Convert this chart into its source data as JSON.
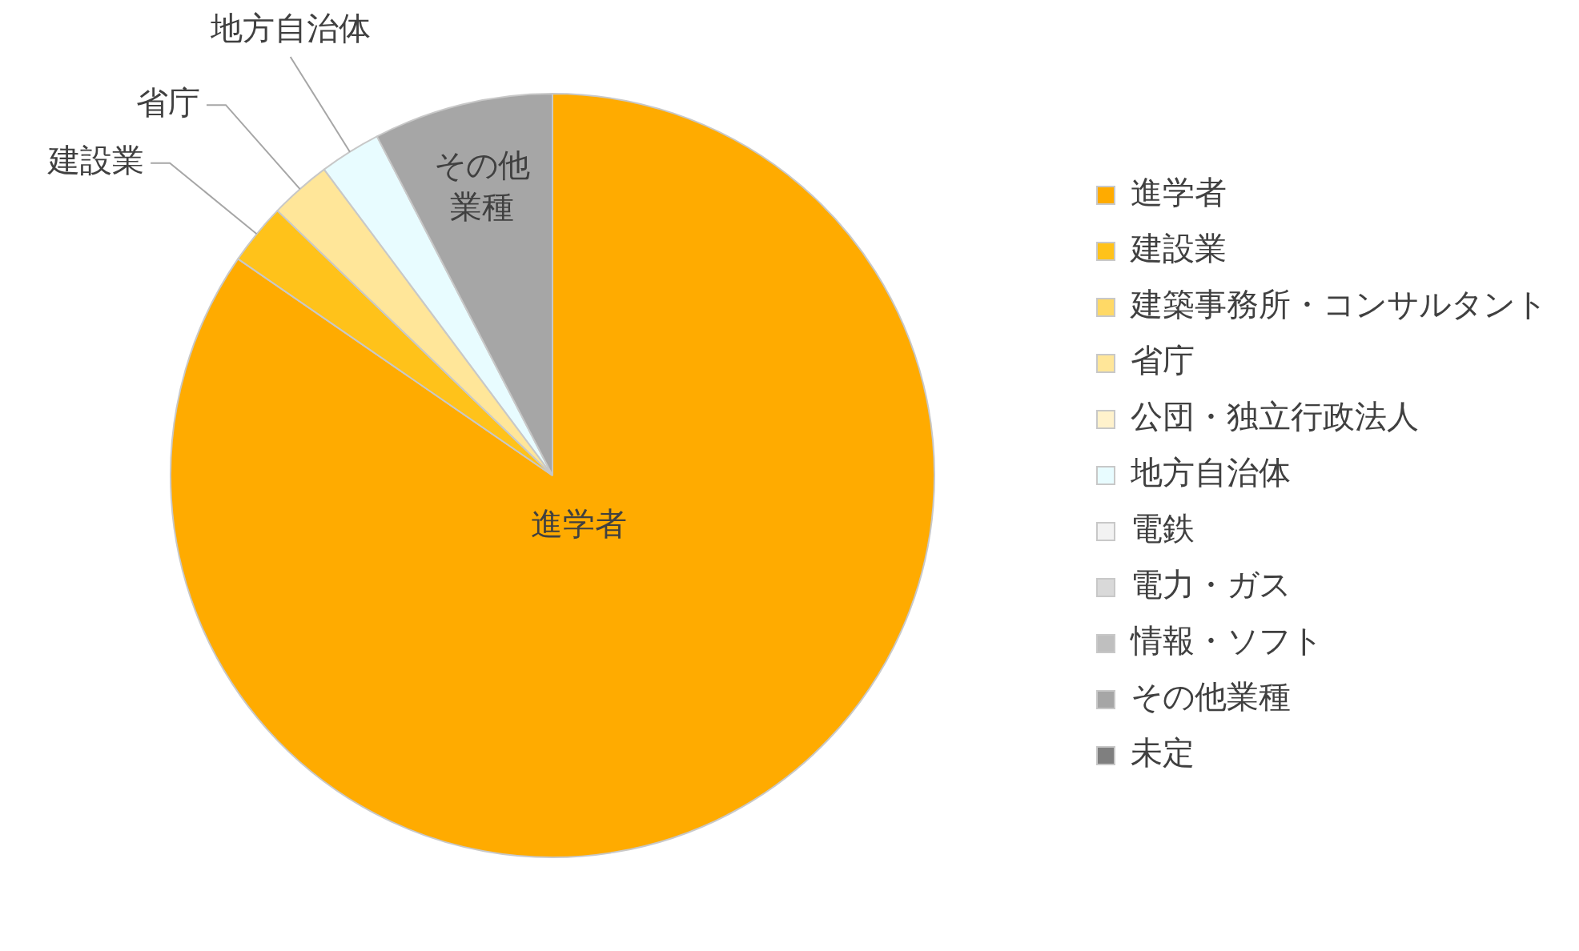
{
  "chart_data": {
    "type": "pie",
    "categories": [
      "進学者",
      "建設業",
      "建築事務所・コンサルタント",
      "省庁",
      "公団・独立行政法人",
      "地方自治体",
      "電鉄",
      "電力・ガス",
      "情報・ソフト",
      "その他業種",
      "未定"
    ],
    "values": [
      84.6,
      2.6,
      0,
      2.6,
      0,
      2.6,
      0,
      0,
      0,
      7.6,
      0
    ],
    "colors": [
      "#ffab00",
      "#ffc21a",
      "#ffd966",
      "#ffe699",
      "#fff2cc",
      "#e8fcff",
      "#f2f2f2",
      "#d9d9d9",
      "#bfbfbf",
      "#a6a6a6",
      "#7f7f7f"
    ],
    "legend": "right"
  }
}
